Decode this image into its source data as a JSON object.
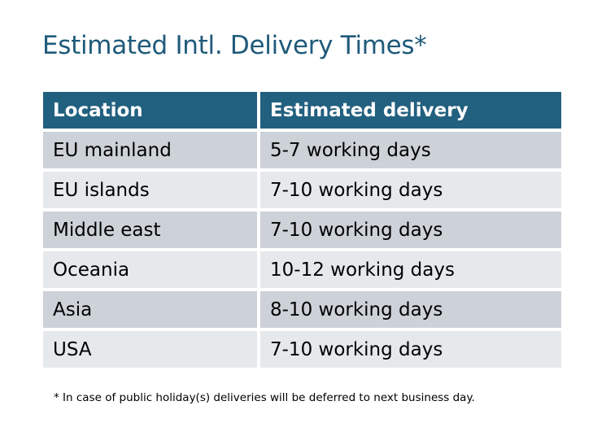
{
  "title": "Estimated Intl. Delivery Times*",
  "table": {
    "headers": [
      "Location",
      "Estimated delivery"
    ],
    "rows": [
      [
        "EU mainland",
        "5-7 working days"
      ],
      [
        "EU islands",
        "7-10 working days"
      ],
      [
        "Middle east",
        "7-10 working days"
      ],
      [
        "Oceania",
        "10-12 working days"
      ],
      [
        "Asia",
        "8-10 working days"
      ],
      [
        "USA",
        "7-10 working days"
      ]
    ]
  },
  "footnote": "* In case of public holiday(s) deliveries will be deferred to next business day.",
  "colors": {
    "header": "#22607f",
    "title": "#1f5a7a",
    "row_dark": "#cdd1d8",
    "row_light": "#e6e9ec"
  }
}
